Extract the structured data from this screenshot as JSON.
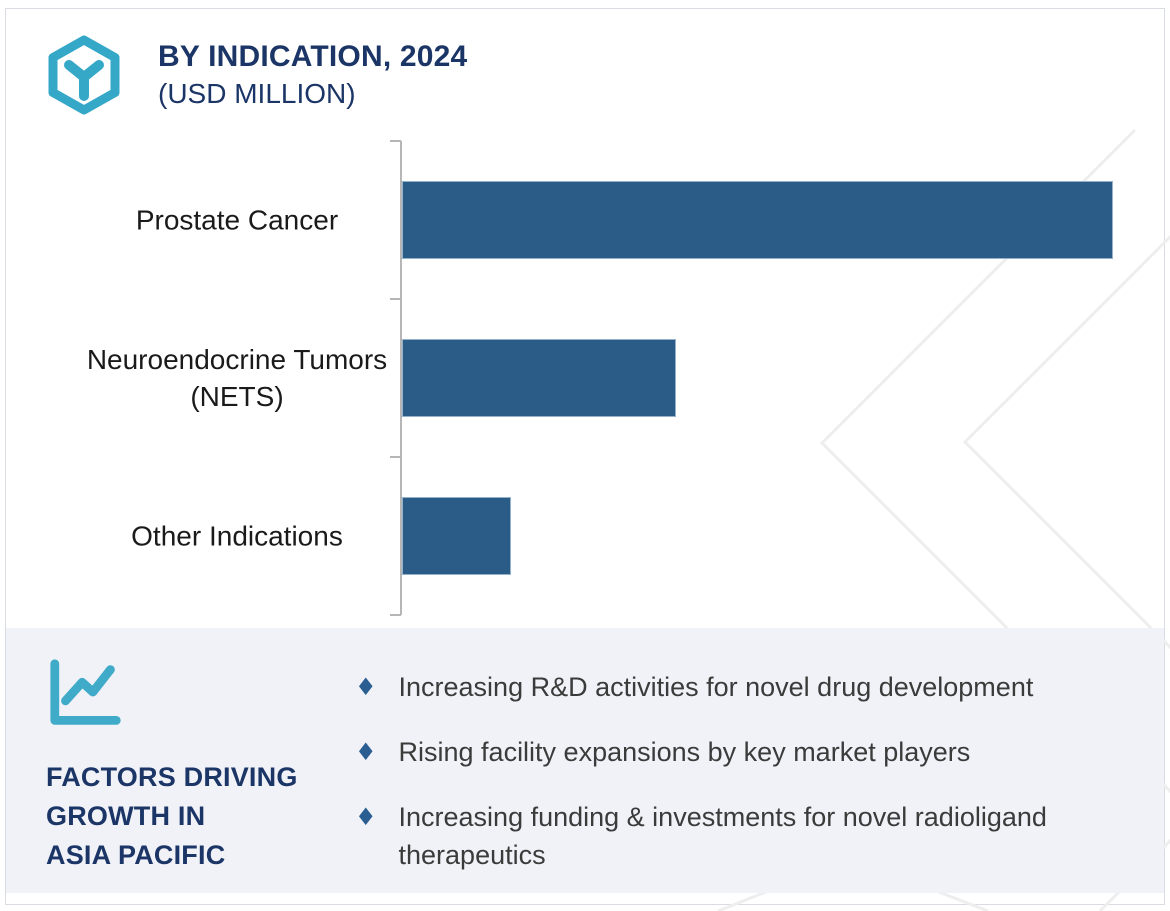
{
  "header": {
    "title": "BY INDICATION, 2024",
    "subtitle": "(USD MILLION)",
    "logo_icon": "hexagon-y-logo"
  },
  "chart_data": {
    "type": "bar",
    "orientation": "horizontal",
    "title": "BY INDICATION, 2024",
    "units": "USD MILLION",
    "categories": [
      "Prostate Cancer",
      "Neuroendocrine Tumors (NETS)",
      "Other Indications"
    ],
    "values_pct_of_max": [
      100,
      38.5,
      15.3
    ],
    "value_labels_shown": false,
    "axis_tick_labels_shown": false,
    "grid": false,
    "legend": false,
    "bar_color": "#2b5c88"
  },
  "factors": {
    "icon": "line-chart-icon",
    "heading_lines": [
      "FACTORS DRIVING",
      "GROWTH IN",
      "ASIA PACIFIC"
    ],
    "bullet_icon": "diamond-bullet",
    "bullet_glyph": "♦",
    "bullets": [
      "Increasing R&D activities for novel drug development",
      "Rising facility expansions by key market players",
      "Increasing funding & investments for novel radioligand therapeutics"
    ]
  },
  "colors": {
    "bar": "#2b5c88",
    "accent_teal": "#35a8c8",
    "heading_navy": "#1b3567",
    "panel_background": "#f0f2f7",
    "axis_gray": "#b6b6b6",
    "bullet_diamond": "#2a5d92",
    "watermark_gray": "#eeeeef"
  }
}
